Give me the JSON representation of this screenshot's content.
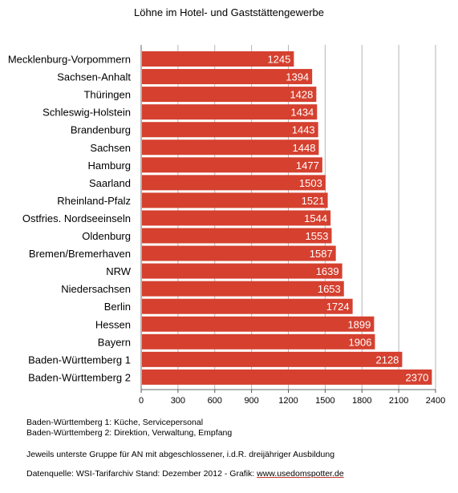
{
  "chart_data": {
    "type": "bar",
    "orientation": "horizontal",
    "title": "Löhne im Hotel- und Gaststättengewerbe",
    "categories": [
      "Mecklenburg-Vorpommern",
      "Sachsen-Anhalt",
      "Thüringen",
      "Schleswig-Holstein",
      "Brandenburg",
      "Sachsen",
      "Hamburg",
      "Saarland",
      "Rheinland-Pfalz",
      "Ostfries. Nordseeinseln",
      "Oldenburg",
      "Bremen/Bremerhaven",
      "NRW",
      "Niedersachsen",
      "Berlin",
      "Hessen",
      "Bayern",
      "Baden-Württemberg 1",
      "Baden-Württemberg 2"
    ],
    "values": [
      1245,
      1394,
      1428,
      1434,
      1443,
      1448,
      1477,
      1503,
      1521,
      1544,
      1553,
      1587,
      1639,
      1653,
      1724,
      1899,
      1906,
      2128,
      2370
    ],
    "data_labels": [
      "1245",
      "1394",
      "1428",
      "1434",
      "1443",
      "1448",
      "1477",
      "1503",
      "1521",
      "1544",
      "1553",
      "1587",
      "1639",
      "1653",
      "1724",
      "1899",
      "1906",
      "2128",
      "2370"
    ],
    "xlim": [
      0,
      2400
    ],
    "xticks": [
      "0",
      "300",
      "600",
      "900",
      "1200",
      "1500",
      "1800",
      "2100",
      "2400"
    ],
    "grid": "vertical",
    "bar_color": "#d5402f"
  },
  "notes": {
    "line1": "Baden-Württemberg 1: Küche, Servicepersonal",
    "line2": "Baden-Württemberg 2: Direktion, Verwaltung, Empfang",
    "line3": "Jeweils unterste Gruppe für AN mit abgeschlossener, i.d.R. dreijähriger Ausbildung"
  },
  "source": {
    "prefix": "Datenquelle: WSI-Tarifarchiv Stand: Dezember 2012 - Grafik: ",
    "link_text": "www.usedomspotter.de"
  }
}
